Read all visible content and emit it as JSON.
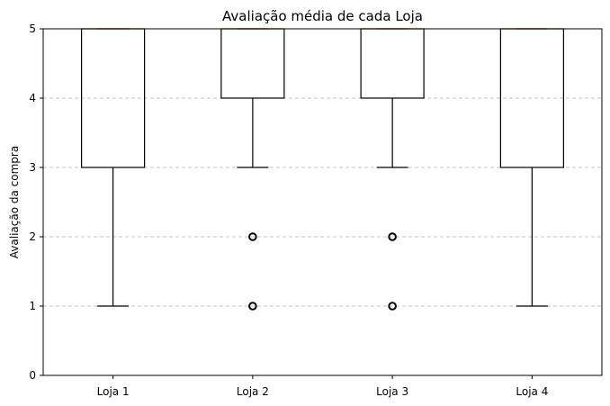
{
  "chart_data": {
    "type": "box",
    "title": "Avaliação média de cada Loja",
    "xlabel": "",
    "ylabel": "Avaliação da compra",
    "ylim": [
      0,
      5
    ],
    "yticks": [
      0,
      1,
      2,
      3,
      4,
      5
    ],
    "grid": "y-dashed",
    "categories": [
      "Loja 1",
      "Loja 2",
      "Loja 3",
      "Loja 4"
    ],
    "boxes": [
      {
        "category": "Loja 1",
        "whisker_low": 1,
        "q1": 3,
        "median": 5,
        "q3": 5,
        "whisker_high": 5,
        "outliers": []
      },
      {
        "category": "Loja 2",
        "whisker_low": 3,
        "q1": 4,
        "median": 5,
        "q3": 5,
        "whisker_high": 5,
        "outliers": [
          1,
          2
        ]
      },
      {
        "category": "Loja 3",
        "whisker_low": 3,
        "q1": 4,
        "median": 5,
        "q3": 5,
        "whisker_high": 5,
        "outliers": [
          1,
          2
        ]
      },
      {
        "category": "Loja 4",
        "whisker_low": 1,
        "q1": 3,
        "median": 5,
        "q3": 5,
        "whisker_high": 5,
        "outliers": []
      }
    ],
    "colors": {
      "box": "#000000",
      "median": "#ff7f0e",
      "grid": "#b0b0b0"
    }
  }
}
